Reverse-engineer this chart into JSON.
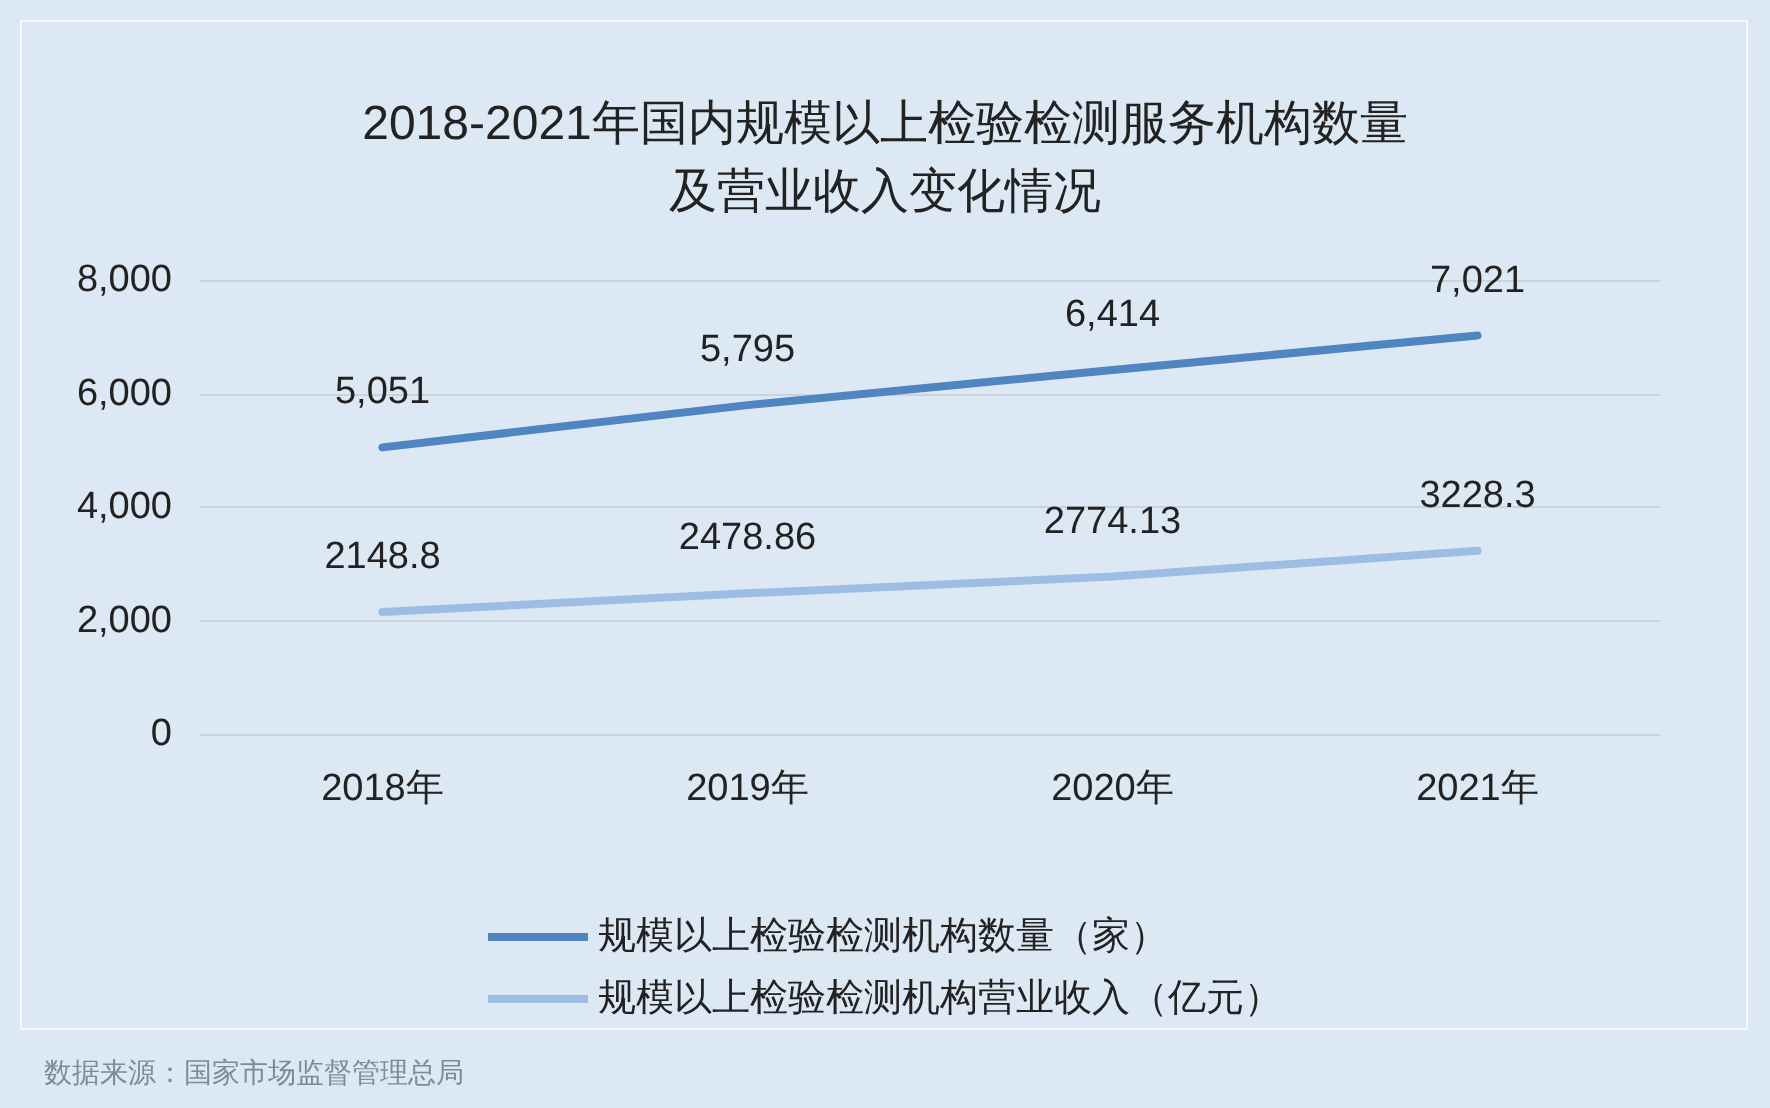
{
  "chart_data": {
    "type": "line",
    "title": "2018-2021年国内规模以上检验检测服务机构数量及营业收入变化情况",
    "categories": [
      "2018年",
      "2019年",
      "2020年",
      "2021年"
    ],
    "series": [
      {
        "name": "规模以上检验检测机构数量（家）",
        "color": "#4f86c0",
        "values": [
          5051,
          5795,
          6414,
          7021
        ],
        "value_labels": [
          "5,051",
          "5,795",
          "6,414",
          "7,021"
        ]
      },
      {
        "name": "规模以上检验检测机构营业收入（亿元）",
        "color": "#9dbde4",
        "values": [
          2148.8,
          2478.86,
          2774.13,
          3228.3
        ],
        "value_labels": [
          "2148.8",
          "2478.86",
          "2774.13",
          "3228.3"
        ]
      }
    ],
    "ylim": [
      0,
      8000
    ],
    "yticks": [
      {
        "value": 0,
        "label": "0"
      },
      {
        "value": 2000,
        "label": "2,000"
      },
      {
        "value": 4000,
        "label": "4,000"
      },
      {
        "value": 6000,
        "label": "6,000"
      },
      {
        "value": 8000,
        "label": "8,000"
      }
    ],
    "grid": "y",
    "legend": "bottom",
    "marker": "none",
    "line_style": "solid",
    "annotations": [
      "数据来源：国家市场监督管理总局"
    ]
  }
}
